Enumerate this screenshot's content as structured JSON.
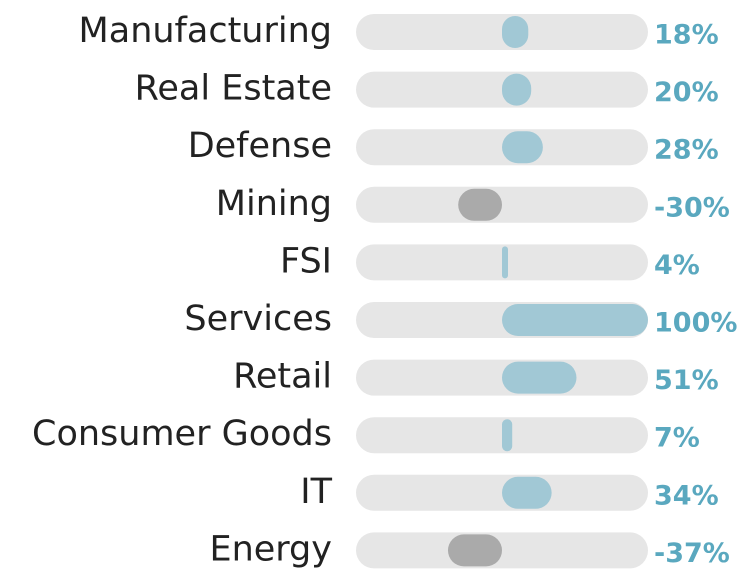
{
  "chart_data": {
    "type": "diverging_bar",
    "categories": [
      "Manufacturing",
      "Real Estate",
      "Defense",
      "Mining",
      "FSI",
      "Services",
      "Retail",
      "Consumer Goods",
      "IT",
      "Energy"
    ],
    "values": [
      18,
      20,
      28,
      -30,
      4,
      100,
      51,
      7,
      34,
      -37
    ],
    "value_labels": [
      "18%",
      "20%",
      "28%",
      "-30%",
      "4%",
      "100%",
      "51%",
      "7%",
      "34%",
      "-37%"
    ],
    "xlim": [
      -100,
      100
    ],
    "color": "#a1c8d5",
    "negative_color": "#aaaaaa",
    "track_color": "#e6e6e6"
  }
}
